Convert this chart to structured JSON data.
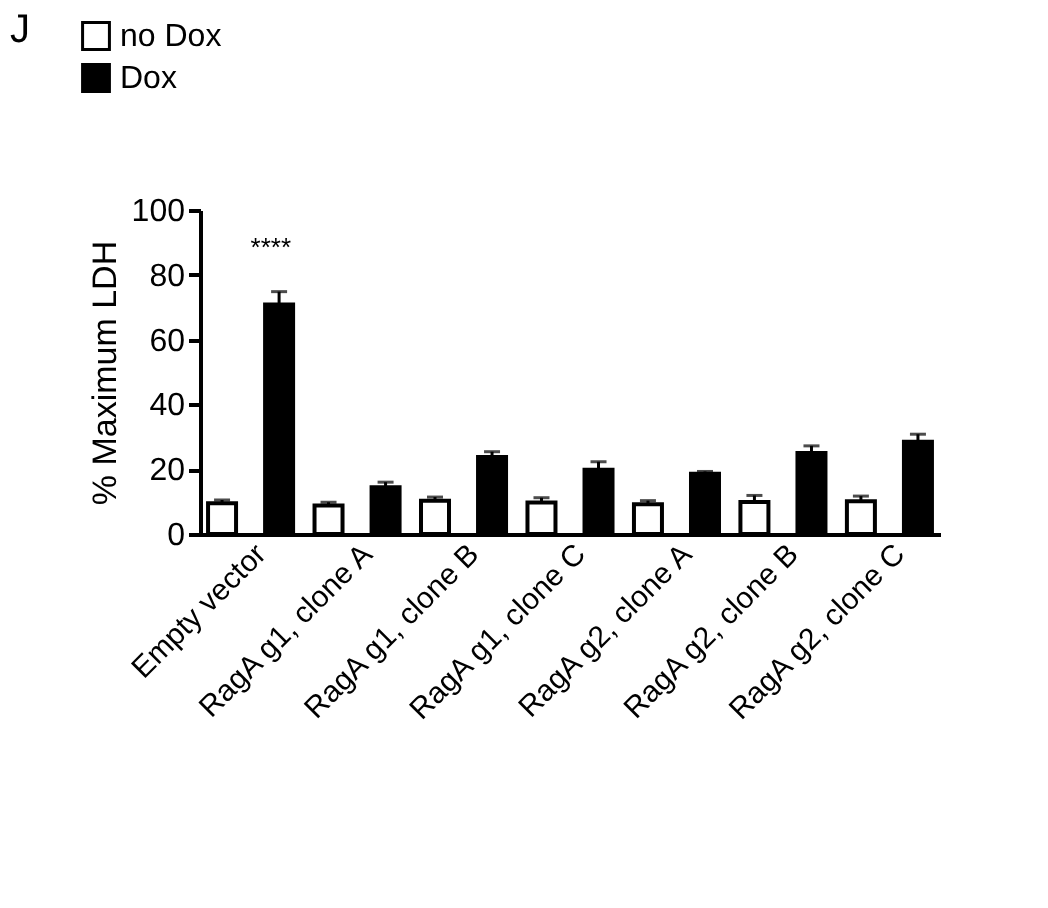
{
  "chart_data": {
    "type": "bar",
    "ylabel": "% Maximum LDH",
    "categories": [
      "Empty vector",
      "RagA g1, clone A",
      "RagA g1, clone B",
      "RagA g1, clone C",
      "RagA g2, clone A",
      "RagA g2, clone B",
      "RagA g2, clone C"
    ],
    "series": [
      {
        "name": "no Dox",
        "color": "#ffffff",
        "values": [
          9.5,
          8.8,
          10.3,
          9.7,
          9.2,
          9.9,
          10.1
        ],
        "errors": [
          1,
          1,
          1.1,
          1.5,
          1.1,
          2,
          1.6
        ]
      },
      {
        "name": "Dox",
        "color": "#000000",
        "values": [
          70.8,
          14.4,
          23.8,
          19.8,
          18.6,
          25,
          28.5
        ],
        "errors": [
          4,
          1.6,
          1.6,
          2.5,
          0.7,
          2.2,
          2.3
        ]
      }
    ],
    "ylim": [
      0,
      100
    ],
    "yticks": [
      0,
      20,
      40,
      60,
      80,
      100
    ],
    "grid": false,
    "legend": "top left",
    "annotations": [
      "J",
      "****"
    ]
  }
}
